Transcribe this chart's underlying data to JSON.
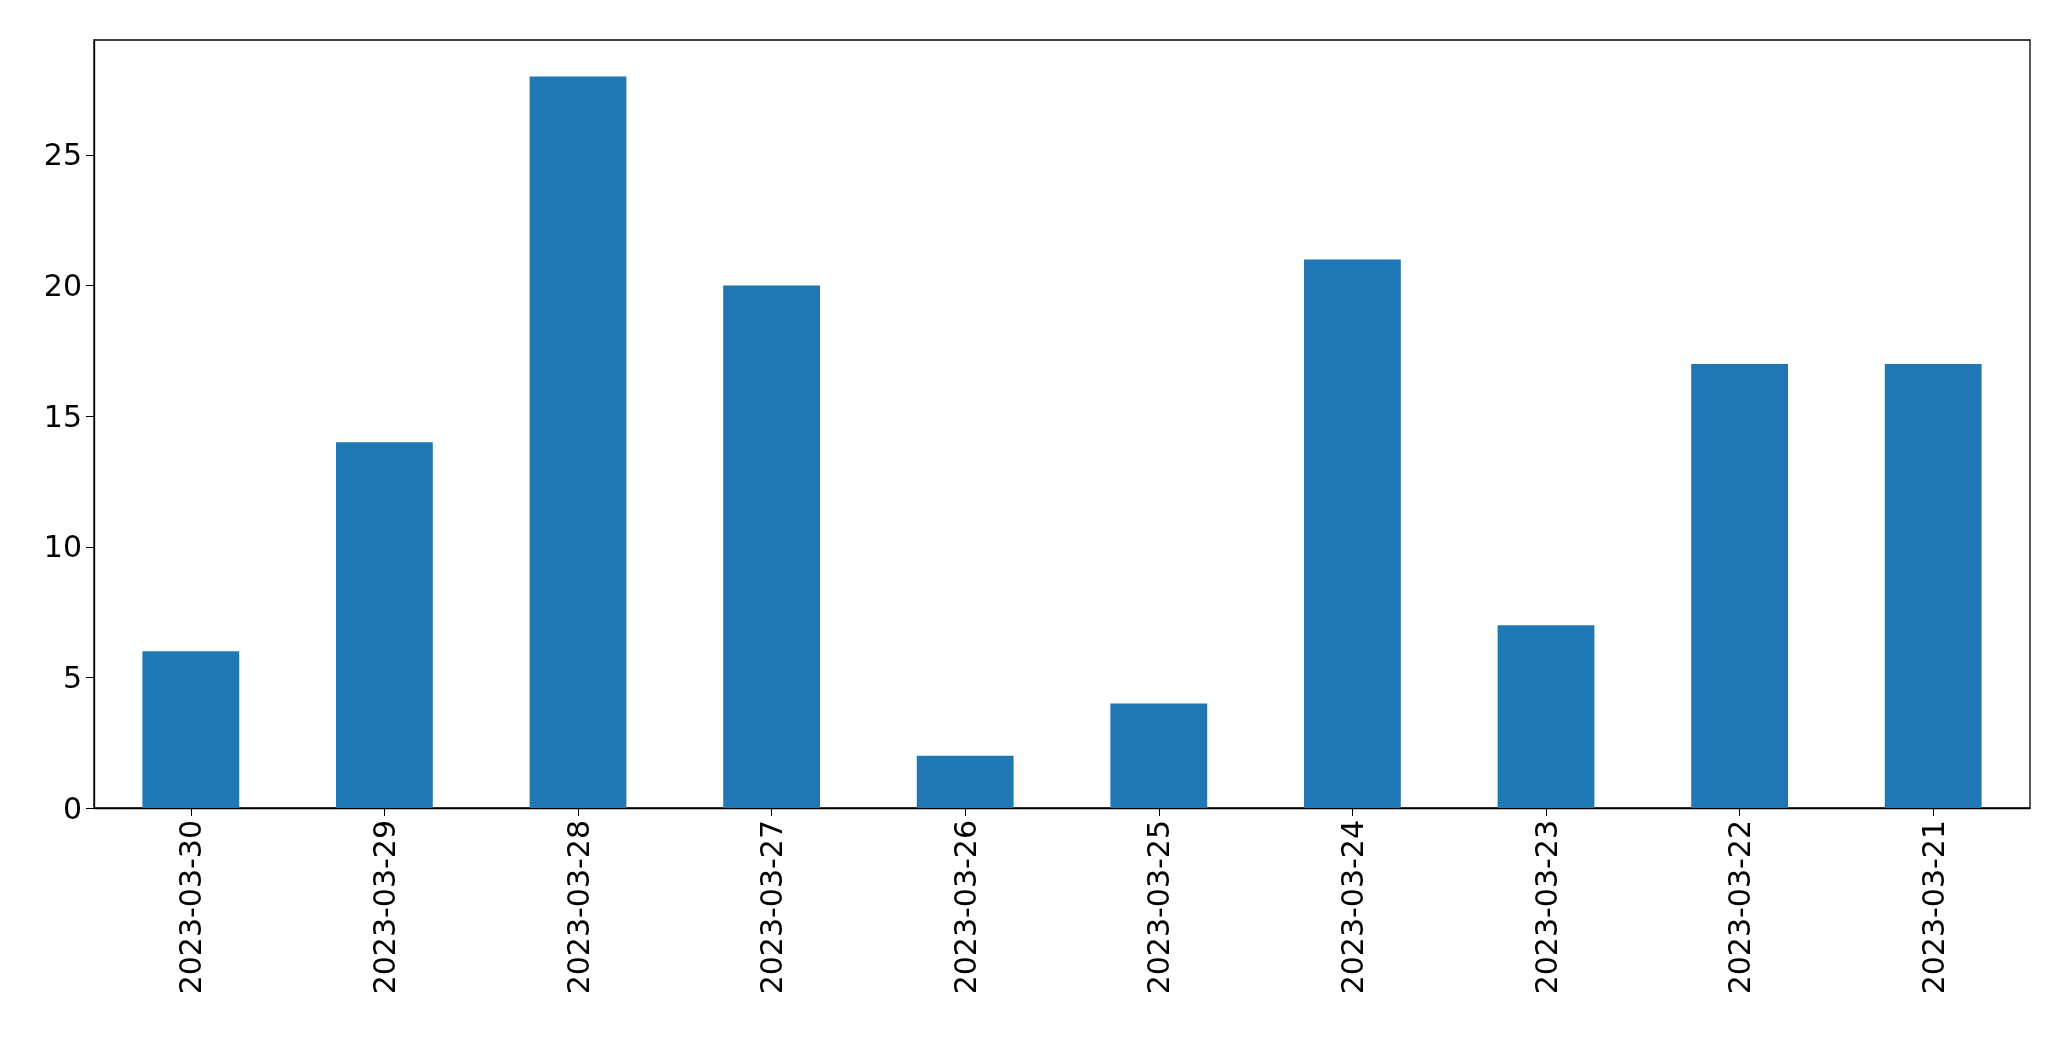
{
  "chart_data": {
    "type": "bar",
    "categories": [
      "2023-03-30",
      "2023-03-29",
      "2023-03-28",
      "2023-03-27",
      "2023-03-26",
      "2023-03-25",
      "2023-03-24",
      "2023-03-23",
      "2023-03-22",
      "2023-03-21"
    ],
    "values": [
      6,
      14,
      28,
      20,
      2,
      4,
      21,
      7,
      17,
      17
    ],
    "color": "#1f77b4",
    "ylim": [
      0,
      29.4
    ],
    "yticks": [
      0,
      5,
      10,
      15,
      20,
      25
    ]
  }
}
